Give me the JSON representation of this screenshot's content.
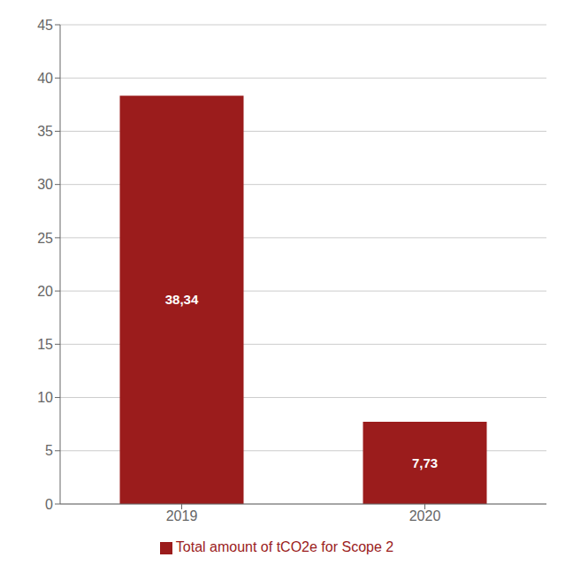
{
  "chart_data": {
    "type": "bar",
    "categories": [
      "2019",
      "2020"
    ],
    "series": [
      {
        "name": "Total amount of tCO2e for Scope 2",
        "color": "#9B1C1C",
        "values": [
          38.34,
          7.73
        ],
        "value_labels": [
          "38,34",
          "7,73"
        ]
      }
    ],
    "ylim": [
      0,
      45
    ],
    "yticks": [
      0,
      5,
      10,
      15,
      20,
      25,
      30,
      35,
      40,
      45
    ],
    "grid": true,
    "legend": "bottom",
    "data_labels": true
  }
}
